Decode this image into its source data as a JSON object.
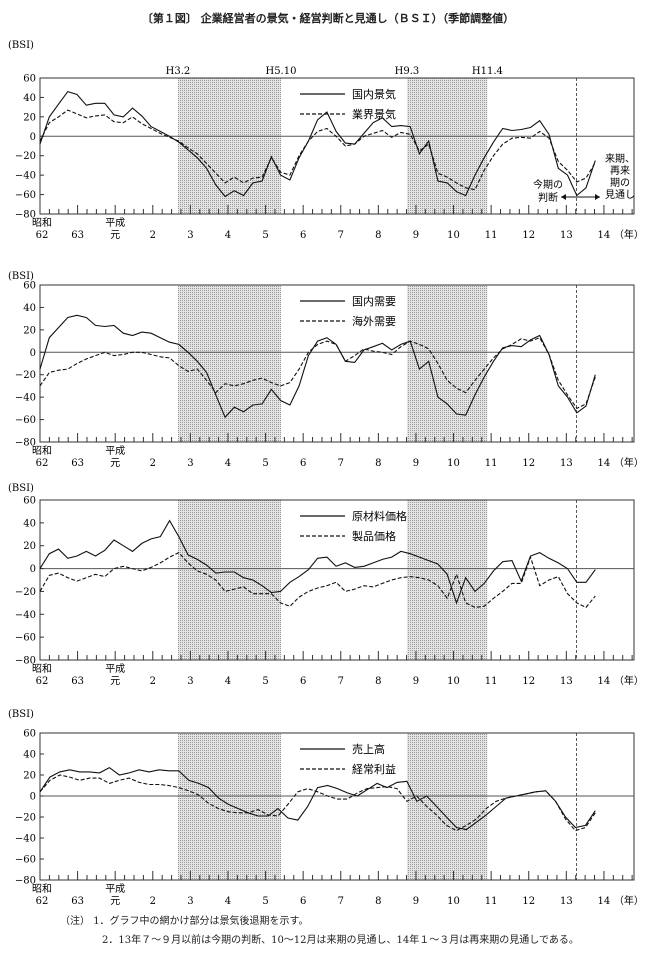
{
  "title": "〔第１図〕 企業経営者の景気・経営判断と見通し（ＢＳＩ）（季節調整値）",
  "x_axis": {
    "tick_labels": [
      "62",
      "63",
      "元",
      "2",
      "3",
      "4",
      "5",
      "6",
      "7",
      "8",
      "9",
      "10",
      "11",
      "12",
      "13",
      "14"
    ],
    "era_labels": {
      "showa": "昭和",
      "heisei": "平成"
    },
    "unit": "（年）",
    "frequency": "quarterly",
    "range": [
      0,
      15.8
    ]
  },
  "y_axis": {
    "label": "(BSI)",
    "ticks": [
      60,
      40,
      20,
      0,
      -20,
      -40,
      -60,
      -80
    ],
    "ylim": [
      -80,
      60
    ]
  },
  "recession_periods": [
    {
      "start_label": "H3.2",
      "end_label": "H5.10",
      "start": 3.67,
      "end": 6.41
    },
    {
      "start_label": "H9.3",
      "end_label": "H11.4",
      "start": 9.76,
      "end": 11.9
    }
  ],
  "forecast_divider": 14.27,
  "forecast_annotation": {
    "left": "今期の判断",
    "right": "来期、再来期の見通し"
  },
  "chart_data": [
    {
      "type": "line",
      "series": [
        {
          "name": "国内景気",
          "style": "solid",
          "values": [
            -8,
            20,
            33,
            46,
            43,
            32,
            34,
            34,
            22,
            20,
            29,
            21,
            10,
            5,
            0,
            -6,
            -14,
            -22,
            -33,
            -50,
            -62,
            -56,
            -61,
            -48,
            -46,
            -21,
            -40,
            -45,
            -22,
            -5,
            17,
            25,
            5,
            -7,
            -8,
            3,
            14,
            19,
            10,
            11,
            10,
            -18,
            -5,
            -46,
            -48,
            -57,
            -61,
            -40,
            -22,
            -6,
            8,
            6,
            7,
            9,
            16,
            2,
            -33,
            -40,
            -61,
            -53,
            -25
          ]
        },
        {
          "name": "業界景気",
          "style": "dashed",
          "values": [
            -5,
            14,
            20,
            27,
            23,
            19,
            21,
            22,
            15,
            14,
            20,
            13,
            8,
            3,
            -1,
            -5,
            -12,
            -18,
            -28,
            -38,
            -48,
            -42,
            -48,
            -43,
            -42,
            -22,
            -37,
            -40,
            -20,
            -5,
            5,
            8,
            0,
            -10,
            -8,
            0,
            3,
            6,
            -1,
            4,
            2,
            -15,
            -8,
            -38,
            -42,
            -48,
            -53,
            -55,
            -35,
            -20,
            -8,
            -2,
            -1,
            -2,
            5,
            -2,
            -26,
            -35,
            -47,
            -43,
            -27
          ]
        }
      ]
    },
    {
      "type": "line",
      "series": [
        {
          "name": "国内需要",
          "style": "solid",
          "values": [
            -15,
            13,
            22,
            31,
            33,
            31,
            24,
            23,
            24,
            17,
            15,
            18,
            17,
            13,
            9,
            7,
            0,
            -8,
            -18,
            -38,
            -58,
            -49,
            -53,
            -47,
            -46,
            -33,
            -43,
            -47,
            -30,
            -3,
            10,
            13,
            7,
            -8,
            -9,
            2,
            5,
            8,
            2,
            7,
            10,
            -15,
            -8,
            -40,
            -46,
            -55,
            -56,
            -38,
            -22,
            -8,
            4,
            6,
            5,
            11,
            15,
            -2,
            -30,
            -40,
            -54,
            -48,
            -20
          ]
        },
        {
          "name": "海外需要",
          "style": "dashed",
          "values": [
            -30,
            -18,
            -16,
            -15,
            -10,
            -6,
            -3,
            0,
            -3,
            -2,
            0,
            0,
            -2,
            -4,
            -5,
            -12,
            -17,
            -15,
            -25,
            -36,
            -28,
            -30,
            -28,
            -25,
            -23,
            -27,
            -30,
            -27,
            -15,
            0,
            7,
            10,
            7,
            -8,
            -3,
            3,
            1,
            0,
            -2,
            5,
            10,
            7,
            3,
            -10,
            -25,
            -32,
            -36,
            -25,
            -15,
            -5,
            3,
            7,
            12,
            10,
            13,
            -2,
            -25,
            -38,
            -50,
            -46,
            -22
          ]
        }
      ]
    },
    {
      "type": "line",
      "series": [
        {
          "name": "原材料価格",
          "style": "solid",
          "values": [
            0,
            13,
            17,
            9,
            11,
            15,
            11,
            16,
            25,
            20,
            15,
            22,
            26,
            28,
            42,
            28,
            12,
            8,
            3,
            -4,
            -3,
            -3,
            -8,
            -10,
            -15,
            -21,
            -20,
            -12,
            -7,
            -1,
            9,
            10,
            2,
            5,
            1,
            2,
            5,
            8,
            10,
            15,
            13,
            10,
            7,
            4,
            -5,
            -30,
            -8,
            -20,
            -13,
            -2,
            6,
            7,
            -11,
            11,
            14,
            9,
            5,
            0,
            -12,
            -12,
            -1
          ]
        },
        {
          "name": "製品価格",
          "style": "dashed",
          "values": [
            -20,
            -6,
            -4,
            -8,
            -11,
            -8,
            -5,
            -7,
            0,
            2,
            0,
            -2,
            1,
            5,
            10,
            14,
            5,
            -2,
            -5,
            -10,
            -20,
            -18,
            -16,
            -22,
            -22,
            -22,
            -30,
            -33,
            -25,
            -20,
            -17,
            -15,
            -12,
            -20,
            -18,
            -15,
            -16,
            -13,
            -10,
            -8,
            -7,
            -8,
            -10,
            -15,
            -26,
            -5,
            -30,
            -34,
            -33,
            -26,
            -20,
            -13,
            -13,
            10,
            -15,
            -10,
            -7,
            -22,
            -30,
            -34,
            -24
          ]
        }
      ]
    },
    {
      "type": "line",
      "series": [
        {
          "name": "売上高",
          "style": "solid",
          "values": [
            4,
            18,
            23,
            25,
            23,
            23,
            22,
            27,
            20,
            22,
            25,
            23,
            25,
            24,
            24,
            15,
            12,
            8,
            -2,
            -8,
            -12,
            -16,
            -19,
            -19,
            -12,
            -21,
            -23,
            -10,
            8,
            10,
            7,
            3,
            0,
            6,
            12,
            8,
            13,
            14,
            -5,
            0,
            -10,
            -20,
            -30,
            -32,
            -25,
            -18,
            -10,
            -2,
            0,
            2,
            4,
            5,
            -5,
            -20,
            -30,
            -28,
            -14
          ]
        },
        {
          "name": "経常利益",
          "style": "dashed",
          "values": [
            4,
            15,
            20,
            18,
            15,
            17,
            17,
            12,
            15,
            17,
            13,
            11,
            11,
            10,
            8,
            5,
            1,
            -7,
            -12,
            -15,
            -16,
            -16,
            -13,
            -18,
            -19,
            -8,
            4,
            7,
            4,
            0,
            -3,
            -3,
            3,
            7,
            8,
            9,
            7,
            -5,
            0,
            -10,
            -18,
            -28,
            -33,
            -28,
            -22,
            -12,
            -5,
            -2,
            0,
            2,
            4,
            5,
            -5,
            -22,
            -33,
            -30,
            -16
          ]
        }
      ]
    }
  ],
  "notes": {
    "prefix": "（注）",
    "items": [
      "1．グラフ中の網かけ部分は景気後退期を示す。",
      "2．13年７～９月以前は今期の判断、10～12月は来期の見通し、14年１～３月は再来期の見通しである。"
    ]
  }
}
